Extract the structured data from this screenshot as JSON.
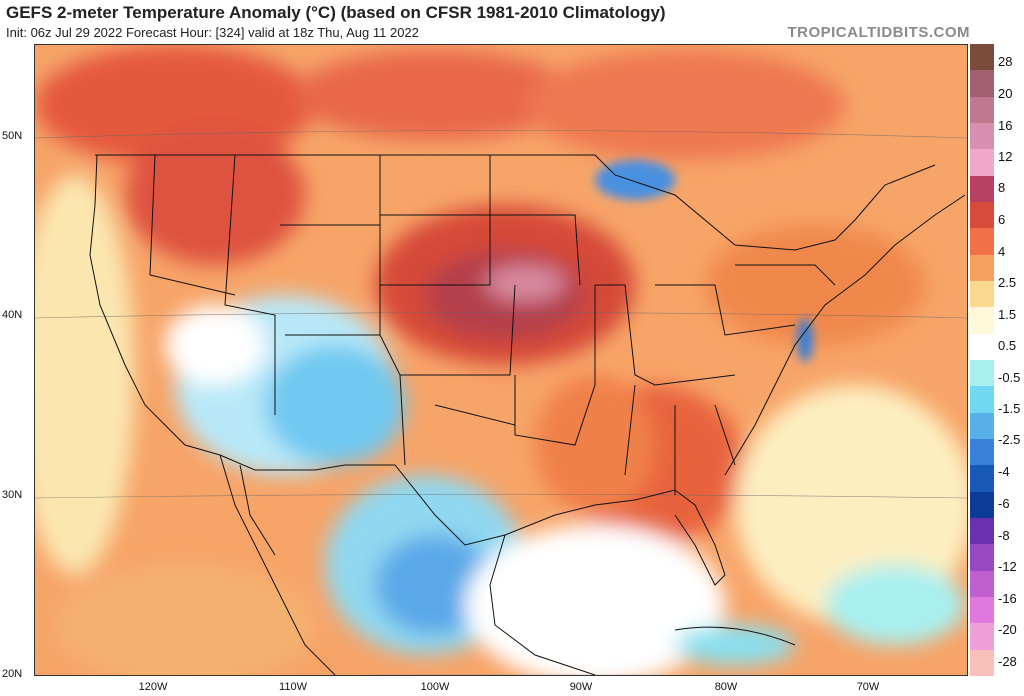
{
  "header": {
    "title": "GEFS 2-meter Temperature Anomaly (°C) (based on CFSR 1981-2010 Climatology)",
    "subtitle": "Init: 06z Jul 29 2022   Forecast Hour: [324]   valid at 18z Thu, Aug 11 2022",
    "brand": "TROPICALTIDBITS.COM"
  },
  "map": {
    "lat_labels": [
      "50N",
      "40N",
      "30N",
      "20N"
    ],
    "lon_labels": [
      "120W",
      "110W",
      "100W",
      "90W",
      "80W",
      "70W"
    ]
  },
  "colorbar": {
    "labels": [
      "28",
      "20",
      "16",
      "12",
      "8",
      "6",
      "4",
      "2.5",
      "1.5",
      "0.5",
      "-0.5",
      "-1.5",
      "-2.5",
      "-4",
      "-6",
      "-8",
      "-12",
      "-16",
      "-20",
      "-28"
    ],
    "colors": [
      "#7a4a3a",
      "#a06070",
      "#c07890",
      "#d890b0",
      "#f0a8c8",
      "#b84060",
      "#d84a3a",
      "#f07048",
      "#f8a060",
      "#fad890",
      "#fff8d8",
      "#ffffff",
      "#a8f0f0",
      "#70d8f0",
      "#58b0e8",
      "#3880d8",
      "#1858b8",
      "#0a3c98",
      "#6a30b0",
      "#9848c0",
      "#c060d0",
      "#e078e0",
      "#f0a0d8",
      "#f8c0b8"
    ]
  }
}
